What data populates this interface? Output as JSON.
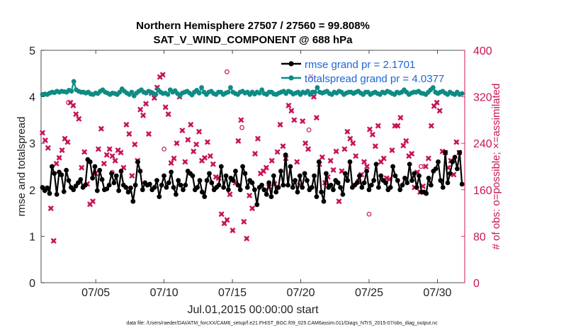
{
  "chart_data": {
    "type": "line",
    "title": "Northern Hemisphere 27507 / 27560 = 99.808%",
    "subtitle": "SAT_V_WIND_COMPONENT @ 688 hPa",
    "xlabel": "Jul.01,2015 00:00:00 start",
    "ylabel": "rmse and totalspread",
    "ylabel_right": "# of obs: o=possible; ×=assimilated",
    "x_ticks": [
      "07/05",
      "07/10",
      "07/15",
      "07/20",
      "07/25",
      "07/30"
    ],
    "x_tick_days": [
      5,
      10,
      15,
      20,
      25,
      30
    ],
    "xlim": [
      1,
      32
    ],
    "ylim": [
      0,
      5
    ],
    "y_ticks": [
      "0",
      "1",
      "2",
      "3",
      "4",
      "5"
    ],
    "ylim_right": [
      0,
      400
    ],
    "y_ticks_right": [
      "0",
      "80",
      "160",
      "240",
      "320",
      "400"
    ],
    "grid": false,
    "legend_position": "top-right",
    "series": [
      {
        "name": "rmse grand pr = 2.1701",
        "color": "#000000",
        "axis": "left",
        "marker": "circle",
        "values": [
          2.05,
          1.98,
          2.04,
          1.92,
          2.5,
          2.35,
          1.9,
          2.38,
          2.32,
          1.96,
          2.42,
          2.2,
          2.05,
          2.0,
          2.08,
          2.15,
          2.22,
          2.05,
          2.1,
          2.65,
          2.6,
          2.25,
          2.5,
          1.98,
          2.42,
          2.22,
          2.0,
          2.02,
          2.1,
          2.35,
          2.15,
          2.3,
          1.98,
          2.4,
          2.1,
          2.05,
          1.95,
          2.04,
          1.75,
          2.1,
          2.6,
          2.4,
          2.0,
          2.15,
          2.1,
          2.12,
          2.0,
          2.05,
          2.2,
          1.85,
          2.1,
          2.3,
          2.05,
          2.15,
          2.38,
          2.05,
          1.9,
          2.2,
          2.1,
          2.0,
          2.1,
          2.4,
          2.35,
          2.3,
          2.0,
          2.05,
          2.2,
          1.95,
          1.85,
          2.2,
          2.35,
          2.15,
          2.0,
          2.05,
          2.1,
          2.5,
          2.05,
          2.3,
          2.0,
          2.25,
          2.2,
          2.4,
          2.1,
          2.0,
          2.5,
          2.35,
          2.05,
          2.2,
          2.15,
          2.0,
          1.68,
          2.05,
          2.1,
          2.0,
          1.9,
          2.15,
          1.85,
          2.3,
          1.95,
          2.05,
          2.4,
          2.1,
          2.75,
          2.1,
          2.5,
          2.05,
          2.2,
          1.95,
          2.3,
          2.05,
          2.35,
          2.2,
          2.0,
          2.05,
          2.3,
          1.85,
          2.6,
          1.95,
          1.75,
          2.35,
          2.05,
          2.1,
          2.0,
          2.2,
          2.15,
          2.05,
          1.9,
          2.35,
          2.2,
          2.6,
          2.05,
          2.1,
          2.15,
          2.3,
          2.05,
          2.15,
          2.4,
          2.0,
          2.1,
          2.2,
          2.55,
          2.05,
          2.3,
          2.2,
          2.15,
          2.0,
          2.05,
          2.5,
          2.3,
          2.2,
          2.0,
          2.1,
          2.25,
          2.15,
          2.55,
          2.2,
          2.35,
          2.05,
          2.3,
          1.95,
          1.95,
          1.92,
          2.25,
          2.1,
          2.4,
          2.45,
          2.6,
          2.2,
          2.05,
          2.8,
          2.15,
          2.35,
          2.6,
          2.7,
          2.45,
          2.8,
          2.12
        ],
        "x_start": 1.1,
        "x_end": 31.8
      },
      {
        "name": "totalspread grand pr = 4.0377",
        "color": "#0e8b84",
        "axis": "left",
        "marker": "circle",
        "values": [
          4.05,
          4.06,
          4.05,
          4.08,
          4.1,
          4.09,
          4.12,
          4.1,
          4.12,
          4.11,
          4.1,
          4.14,
          4.12,
          4.33,
          4.15,
          4.12,
          4.1,
          4.1,
          4.08,
          4.1,
          4.06,
          4.05,
          4.08,
          4.07,
          4.12,
          4.15,
          4.1,
          4.08,
          4.05,
          4.08,
          4.07,
          4.05,
          4.1,
          4.17,
          4.12,
          4.08,
          4.05,
          4.1,
          4.02,
          4.08,
          4.12,
          4.15,
          4.1,
          4.08,
          4.12,
          4.1,
          4.07,
          4.05,
          4.15,
          4.1,
          4.07,
          4.08,
          4.05,
          4.15,
          4.1,
          4.13,
          4.07,
          4.02,
          4.08,
          4.1,
          4.12,
          4.08,
          4.04,
          4.1,
          4.14,
          4.08,
          4.2,
          4.1,
          4.05,
          4.1,
          4.12,
          4.07,
          4.05,
          4.1,
          4.1,
          4.05,
          4.08,
          4.1,
          4.2,
          4.1,
          4.07,
          4.05,
          4.1,
          4.12,
          4.08,
          4.1,
          4.05,
          4.1,
          4.06,
          4.1,
          4.08,
          4.15,
          4.07,
          4.05,
          4.1,
          4.1,
          4.06,
          4.05,
          4.08,
          4.1,
          4.12,
          4.07,
          4.12,
          4.1,
          4.06,
          4.08,
          4.1,
          4.05,
          4.1,
          4.08,
          4.12,
          4.05,
          4.1,
          4.1,
          4.2,
          4.1,
          4.08,
          4.1,
          4.12,
          4.07,
          4.05,
          4.1,
          4.08,
          4.12,
          4.1,
          4.05,
          4.08,
          4.1,
          4.1,
          4.07,
          4.1,
          4.12,
          4.08,
          4.05,
          4.1,
          4.1,
          4.05,
          4.08,
          4.1,
          4.07,
          4.05,
          4.1,
          4.08,
          4.12,
          4.1,
          4.07,
          4.05,
          4.1,
          4.08,
          4.1,
          4.15,
          4.1,
          4.05,
          4.08,
          4.1,
          4.1,
          4.12,
          4.08,
          4.07,
          4.05,
          4.1,
          4.15,
          4.2,
          4.1,
          4.07,
          4.1,
          4.12,
          4.08,
          4.05,
          4.1,
          4.07,
          4.05,
          4.1,
          4.05,
          4.07
        ],
        "x_start": 1.1,
        "x_end": 31.8
      },
      {
        "name": "obs possible",
        "color": "#c8155a",
        "axis": "right",
        "marker": "o",
        "points": [
          [
            3.0,
            310
          ],
          [
            6.2,
            190
          ],
          [
            10.0,
            230
          ],
          [
            14.6,
            363
          ],
          [
            15.7,
            267
          ],
          [
            20.6,
            263
          ],
          [
            25.0,
            118
          ],
          [
            28.8,
            200
          ]
        ]
      },
      {
        "name": "obs assimilated",
        "color": "#c8155a",
        "axis": "right",
        "marker": "x",
        "values": [
          258,
          245,
          232,
          128,
          72,
          205,
          215,
          228,
          248,
          242,
          310,
          305,
          290,
          282,
          198,
          225,
          170,
          135,
          140,
          188,
          230,
          265,
          205,
          220,
          230,
          218,
          210,
          228,
          224,
          198,
          272,
          256,
          184,
          238,
          210,
          298,
          288,
          308,
          256,
          326,
          318,
          336,
          354,
          358,
          302,
          290,
          206,
          214,
          240,
          320,
          262,
          208,
          246,
          272,
          226,
          238,
          260,
          210,
          215,
          242,
          218,
          204,
          182,
          180,
          118,
          102,
          108,
          152,
          90,
          172,
          244,
          280,
          105,
          76,
          150,
          128,
          222,
          248,
          188,
          192,
          198,
          165,
          210,
          170,
          225,
          272,
          235,
          214,
          305,
          296,
          280,
          208,
          168,
          278,
          240,
          230,
          355,
          320,
          284,
          204,
          216,
          172,
          182,
          210,
          194,
          226,
          140,
          192,
          230,
          260,
          248,
          240,
          218,
          174,
          186,
          208,
          200,
          264,
          255,
          235,
          270,
          208,
          214,
          180,
          178,
          228,
          270,
          270,
          284,
          236,
          244,
          218,
          222,
          164,
          190,
          156,
          166,
          200,
          214,
          270,
          304,
          310,
          296,
          226,
          224,
          198,
          210,
          186,
          242,
          224
        ],
        "x_start": 1.1,
        "x_end": 31.6
      }
    ],
    "footer": "data file: /Users/raeder/DAI/ATM_forcXX/CAM6_setup/f.e21.FHIST_BGC.f09_025.CAM6assim.011/Diags_NTrS_2015-07/obs_diag_output.nc"
  }
}
